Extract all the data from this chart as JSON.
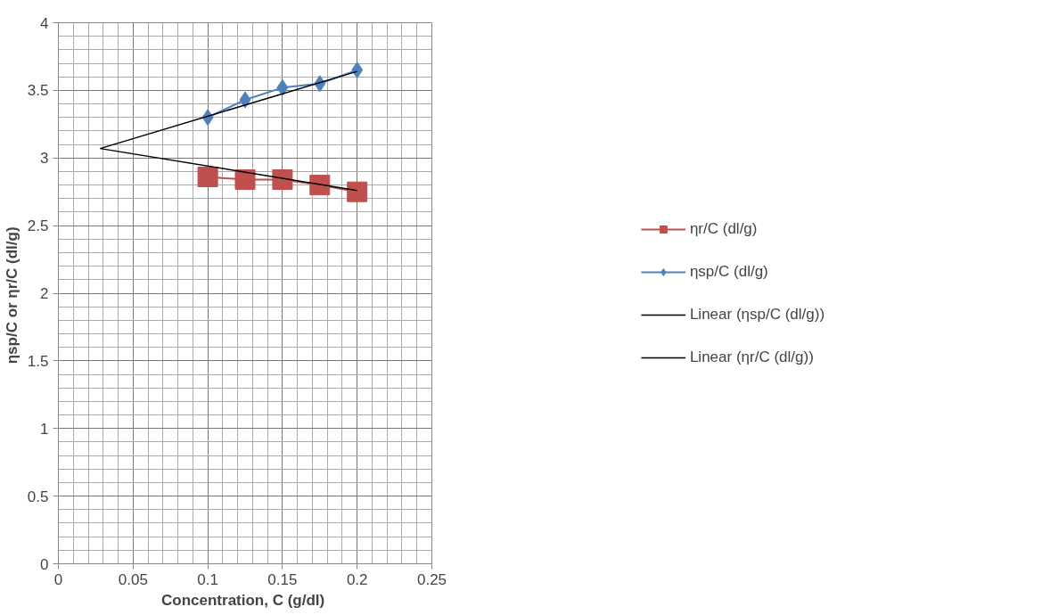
{
  "chart_data": {
    "type": "line",
    "xlabel": "Concentration, C  (g/dl)",
    "ylabel": "ηsp/C  or ηr/C (dl/g)",
    "xlim": [
      0,
      0.25
    ],
    "xticks": [
      0,
      0.05,
      0.1,
      0.15,
      0.2,
      0.25
    ],
    "ylim": [
      0,
      4
    ],
    "yticks": [
      0,
      0.5,
      1,
      1.5,
      2,
      2.5,
      3,
      3.5,
      4
    ],
    "grid": true,
    "legend": "right",
    "series": [
      {
        "name": "ηr/C (dl/g)",
        "color": "#c0504d",
        "marker": "square",
        "x": [
          0.1,
          0.125,
          0.15,
          0.175,
          0.2
        ],
        "values": [
          2.86,
          2.84,
          2.84,
          2.8,
          2.75
        ]
      },
      {
        "name": "ηsp/C (dl/g)",
        "color": "#4f81bd",
        "marker": "diamond",
        "x": [
          0.1,
          0.125,
          0.15,
          0.175,
          0.2
        ],
        "values": [
          3.3,
          3.43,
          3.52,
          3.55,
          3.65
        ]
      },
      {
        "name": "Linear (ηsp/C (dl/g))",
        "color": "#000000",
        "marker": "none",
        "x": [
          0.028,
          0.2
        ],
        "values": [
          3.07,
          3.64
        ]
      },
      {
        "name": "Linear (ηr/C (dl/g))",
        "color": "#000000",
        "marker": "none",
        "x": [
          0.028,
          0.2
        ],
        "values": [
          3.07,
          2.76
        ]
      }
    ]
  }
}
